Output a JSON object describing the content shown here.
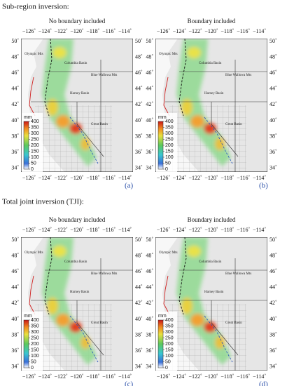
{
  "sections": [
    {
      "title": "Sub-region inversion:",
      "panels": [
        {
          "title": "No boundary included",
          "letter": "(a)"
        },
        {
          "title": "Boundary included",
          "letter": "(b)"
        }
      ]
    },
    {
      "title": "Total joint inversion (TJI):",
      "panels": [
        {
          "title": "No boundary included",
          "letter": "(c)"
        },
        {
          "title": "Boundary included",
          "letter": "(d)"
        }
      ]
    }
  ],
  "lon_ticks": [
    "−126˚",
    "−124˚",
    "−122˚",
    "−120˚",
    "−118˚",
    "−116˚",
    "−114˚"
  ],
  "lat_ticks": [
    "50˚",
    "48˚",
    "46˚",
    "44˚",
    "42˚",
    "40˚",
    "38˚",
    "36˚",
    "34˚"
  ],
  "colorbar": {
    "unit": "mm",
    "ticks": [
      400,
      350,
      300,
      250,
      200,
      150,
      100,
      50,
      0
    ]
  },
  "places": [
    "Olympic Mts",
    "Columbia Basin",
    "Blue Wallowa Mts",
    "Harney Basin",
    "Great Basin"
  ]
}
